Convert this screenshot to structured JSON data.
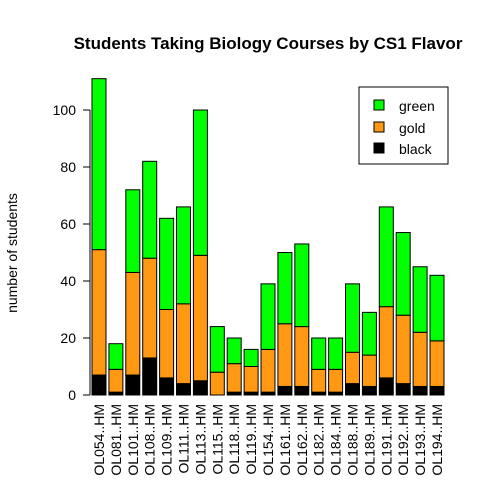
{
  "chart_data": {
    "type": "bar",
    "stacked": true,
    "title": "Students Taking Biology Courses by CS1 Flavor",
    "xlabel": "",
    "ylabel": "number of students",
    "ylim": [
      0,
      110
    ],
    "yticks": [
      0,
      20,
      40,
      60,
      80,
      100
    ],
    "categories": [
      "BIOL054.HM",
      "BIOL081.HM",
      "BIOL101.HM",
      "BIOL108.HM",
      "BIOL109.HM",
      "BIOL111.HM",
      "BIOL113.HM",
      "BIOL115.HM",
      "BIOL118.HM",
      "BIOL119.HM",
      "BIOL154.HM",
      "BIOL161.HM",
      "BIOL162.HM",
      "BIOL182.HM",
      "BIOL184.HM",
      "BIOL188.HM",
      "BIOL189.HM",
      "BIOL191.HM",
      "BIOL192.HM",
      "BIOL193.HM",
      "BIOL194.HM"
    ],
    "category_labels": [
      "OL054..HM",
      "OL081..HM",
      "OL101..HM",
      "OL108..HM",
      "OL109..HM",
      "OL111..HM",
      "OL113..HM",
      "OL115..HM",
      "OL118..HM",
      "OL119..HM",
      "OL154..HM",
      "OL161..HM",
      "OL162..HM",
      "OL182..HM",
      "OL184..HM",
      "OL188..HM",
      "OL189..HM",
      "OL191..HM",
      "OL192..HM",
      "OL193..HM",
      "OL194..HM"
    ],
    "series": [
      {
        "name": "black",
        "color": "#000000",
        "values": [
          7,
          1,
          7,
          13,
          6,
          4,
          5,
          0,
          1,
          1,
          1,
          3,
          3,
          1,
          1,
          4,
          3,
          6,
          4,
          3,
          3
        ]
      },
      {
        "name": "gold",
        "color": "#FF9913",
        "values": [
          44,
          8,
          36,
          35,
          24,
          28,
          44,
          8,
          10,
          9,
          15,
          22,
          21,
          8,
          8,
          11,
          11,
          25,
          24,
          19,
          16
        ]
      },
      {
        "name": "green",
        "color": "#00FF00",
        "values": [
          60,
          9,
          29,
          34,
          32,
          34,
          51,
          16,
          9,
          6,
          23,
          25,
          29,
          11,
          11,
          24,
          15,
          35,
          29,
          23,
          23
        ]
      }
    ],
    "legend": {
      "position": "top-right",
      "entries": [
        "green",
        "gold",
        "black"
      ]
    },
    "grid": false
  }
}
